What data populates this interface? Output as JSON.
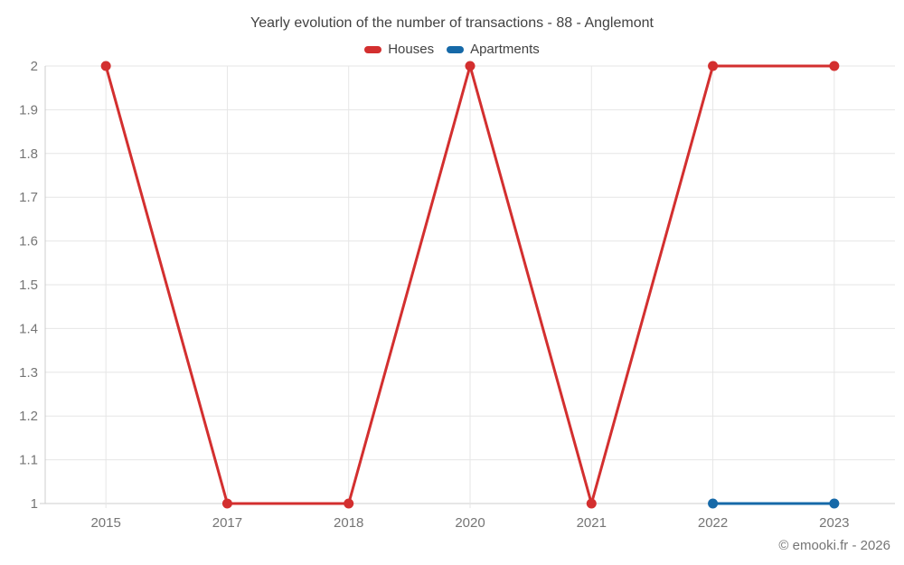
{
  "chart": {
    "title": "Yearly evolution of the number of transactions - 88 - Anglemont",
    "watermark": "© emooki.fr - 2026"
  },
  "chart_data": {
    "type": "line",
    "title": "Yearly evolution of the number of transactions - 88 - Anglemont",
    "categories": [
      "2015",
      "2017",
      "2018",
      "2020",
      "2021",
      "2022",
      "2023"
    ],
    "series": [
      {
        "name": "Houses",
        "color": "#d32f2f",
        "values": [
          2,
          1,
          1,
          2,
          1,
          2,
          2
        ]
      },
      {
        "name": "Apartments",
        "color": "#1669a8",
        "values": [
          null,
          null,
          null,
          null,
          null,
          1,
          1
        ]
      }
    ],
    "ylim": [
      1,
      2
    ],
    "ytick_step": 0.1,
    "ytick_labels": [
      "1",
      "1.1",
      "1.2",
      "1.3",
      "1.4",
      "1.5",
      "1.6",
      "1.7",
      "1.8",
      "1.9",
      "2"
    ],
    "grid": true,
    "legend_position": "top",
    "marker_radius": 5.5,
    "line_width": 3,
    "colors": {
      "gridline": "#e6e6e6",
      "axis": "#cccccc",
      "tick_label": "#757575",
      "title": "#424242",
      "watermark": "#757575",
      "background": "#ffffff"
    }
  }
}
